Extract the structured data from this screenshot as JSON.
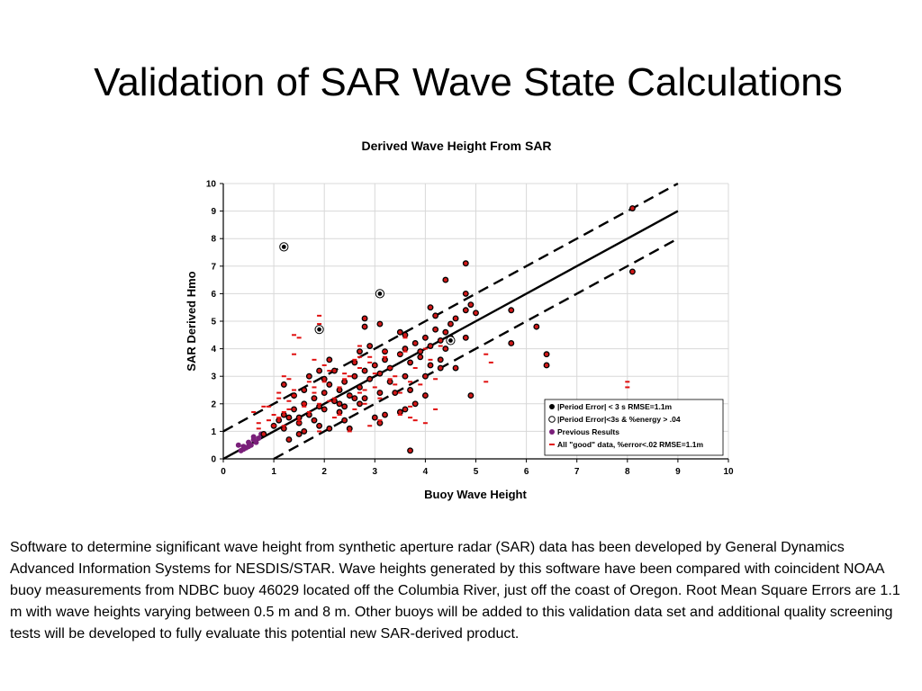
{
  "slide": {
    "title": "Validation of SAR Wave State Calculations",
    "body": "Software to determine significant wave height from synthetic aperture radar (SAR) data has been developed by General Dynamics Advanced Information Systems for NESDIS/STAR.  Wave heights generated by this software have been compared with coincident NOAA buoy measurements from NDBC buoy 46029 located off the Columbia River, just off the coast of Oregon.  Root Mean Square Errors are 1.1 m with wave heights varying between 0.5 m and 8 m.  Other buoys will be added to this validation data set and additional quality screening tests will be developed to fully evaluate this potential new SAR-derived product."
  },
  "chart_data": {
    "type": "scatter",
    "title": "Derived Wave Height From SAR",
    "xlabel": "Buoy Wave Height",
    "ylabel": "SAR Derived Hmo",
    "xlim": [
      0,
      10
    ],
    "ylim": [
      0,
      10
    ],
    "xticks": [
      "0",
      "1",
      "2",
      "3",
      "4",
      "5",
      "6",
      "7",
      "8",
      "9",
      "10"
    ],
    "yticks": [
      "0",
      "1",
      "2",
      "3",
      "4",
      "5",
      "6",
      "7",
      "8",
      "9",
      "10"
    ],
    "grid": true,
    "legend_position": "bottom-right",
    "colors": {
      "filled": "#000000",
      "previous": "#7a1f7a",
      "good": "#e01010",
      "good_fill": "#d01818",
      "grid": "#d8d8d8"
    },
    "reference_lines": [
      {
        "style": "solid",
        "intercept": 0
      },
      {
        "style": "dashed",
        "intercept": 1
      },
      {
        "style": "dashed",
        "intercept": -1
      }
    ],
    "series": [
      {
        "name": "|Period Error| < 3 s RMSE=1.1m",
        "marker": "filled-circle",
        "x": [
          0.8,
          1.0,
          1.1,
          1.2,
          1.2,
          1.3,
          1.4,
          1.5,
          1.6,
          1.7,
          1.8,
          1.9,
          2.0,
          2.1,
          2.2,
          2.3,
          2.4,
          2.5,
          2.6,
          2.7,
          2.8,
          2.9,
          3.0,
          3.1,
          3.2,
          3.3,
          3.5,
          3.6,
          3.7,
          3.8,
          3.9,
          4.0,
          4.1,
          4.2,
          4.3,
          4.4,
          4.5,
          4.6,
          4.8,
          4.9,
          5.0,
          1.4,
          1.6,
          1.8,
          2.0,
          2.2,
          2.4,
          2.6,
          2.8,
          3.0,
          3.2,
          3.4,
          3.6,
          3.8,
          4.0,
          4.2,
          4.4,
          4.6,
          4.8,
          1.5,
          1.7,
          1.9,
          2.1,
          2.3,
          2.5,
          2.7,
          2.9,
          3.1,
          3.3,
          3.5,
          3.7,
          3.9,
          4.1,
          4.3,
          4.5,
          1.3,
          1.6,
          2.0,
          2.4,
          2.8,
          3.2,
          3.6,
          4.0,
          4.4,
          4.8,
          2.1,
          2.6,
          3.1,
          3.6,
          4.1,
          5.7,
          6.2,
          6.4,
          6.4,
          8.1,
          8.1,
          3.7,
          4.9,
          5.7,
          4.3,
          4.8,
          2.8,
          1.2,
          1.5,
          1.9,
          2.3,
          2.7,
          3.1,
          3.5
        ],
        "y": [
          0.9,
          1.2,
          1.4,
          1.6,
          1.1,
          1.5,
          1.8,
          1.3,
          2.0,
          1.6,
          2.2,
          1.9,
          2.4,
          2.7,
          2.1,
          2.5,
          2.8,
          2.3,
          3.0,
          2.6,
          3.2,
          2.9,
          3.4,
          3.1,
          3.6,
          3.3,
          3.8,
          4.0,
          3.5,
          4.2,
          3.9,
          4.4,
          4.1,
          4.7,
          4.3,
          4.6,
          4.9,
          5.1,
          5.4,
          5.6,
          5.3,
          2.3,
          2.5,
          1.4,
          1.8,
          3.2,
          1.9,
          3.5,
          2.2,
          1.5,
          3.9,
          2.4,
          4.5,
          2.0,
          3.0,
          5.2,
          4.0,
          3.3,
          6.0,
          0.9,
          3.0,
          1.2,
          3.6,
          1.7,
          1.1,
          2.0,
          4.1,
          1.3,
          2.8,
          4.6,
          2.5,
          3.7,
          5.5,
          3.3,
          4.4,
          0.7,
          1.0,
          2.9,
          1.4,
          5.1,
          1.6,
          3.0,
          2.3,
          6.5,
          7.1,
          1.1,
          2.2,
          4.9,
          1.8,
          3.4,
          5.4,
          4.8,
          3.8,
          3.4,
          9.1,
          6.8,
          0.3,
          2.3,
          4.2,
          3.6,
          4.4,
          4.8,
          2.7,
          1.5,
          3.2,
          2.0,
          3.9,
          2.4,
          1.7
        ]
      },
      {
        "name": "|Period Error|<3s & %energy > .04",
        "marker": "open-circle",
        "x": [
          1.2,
          1.9,
          3.1,
          4.5
        ],
        "y": [
          7.7,
          4.7,
          6.0,
          4.3
        ]
      },
      {
        "name": "Previous Results",
        "marker": "purple-circle",
        "x": [
          0.3,
          0.35,
          0.4,
          0.45,
          0.5,
          0.55,
          0.6,
          0.65,
          0.7,
          0.4,
          0.5,
          0.6,
          0.75
        ],
        "y": [
          0.5,
          0.3,
          0.45,
          0.4,
          0.6,
          0.5,
          0.8,
          0.6,
          0.75,
          0.35,
          0.45,
          0.7,
          0.9
        ]
      },
      {
        "name": "All \"good\" data, %error<.02 RMSE=1.1m",
        "marker": "red-dash",
        "x": [
          0.6,
          0.7,
          0.8,
          0.9,
          1.0,
          1.1,
          1.2,
          1.3,
          1.4,
          1.5,
          1.6,
          1.7,
          1.8,
          1.9,
          2.0,
          2.1,
          2.2,
          2.3,
          2.4,
          2.5,
          2.6,
          2.7,
          2.8,
          2.9,
          3.0,
          3.1,
          3.2,
          3.3,
          3.4,
          3.5,
          3.6,
          3.7,
          3.8,
          3.9,
          4.0,
          4.1,
          4.2,
          4.3,
          0.7,
          0.9,
          1.1,
          1.3,
          1.5,
          1.7,
          1.9,
          2.1,
          2.3,
          2.5,
          2.7,
          2.9,
          3.1,
          3.3,
          3.5,
          3.7,
          1.0,
          1.2,
          1.4,
          1.6,
          1.8,
          2.0,
          2.2,
          2.4,
          2.6,
          2.8,
          3.0,
          3.2,
          3.4,
          3.6,
          1.4,
          1.5,
          1.9,
          1.9,
          1.4,
          1.2,
          1.8,
          2.7,
          2.7,
          5.2,
          5.2,
          5.3,
          8.0,
          8.0,
          3.7,
          3.8,
          4.0,
          4.2,
          2.5,
          2.9,
          3.5,
          1.1,
          1.3
        ],
        "y": [
          1.7,
          1.1,
          1.9,
          1.4,
          1.6,
          2.2,
          1.2,
          1.8,
          2.5,
          1.3,
          2.0,
          1.7,
          2.4,
          1.0,
          2.8,
          2.1,
          1.5,
          2.6,
          3.1,
          2.3,
          1.8,
          3.3,
          2.0,
          3.5,
          2.6,
          1.4,
          3.7,
          2.9,
          3.0,
          2.4,
          3.9,
          1.9,
          3.3,
          2.7,
          4.0,
          3.6,
          2.9,
          4.1,
          1.3,
          1.9,
          1.5,
          2.1,
          1.4,
          2.8,
          2.0,
          3.2,
          1.6,
          3.0,
          2.4,
          3.7,
          2.2,
          3.3,
          3.8,
          2.8,
          1.2,
          1.7,
          2.3,
          1.9,
          2.6,
          3.4,
          2.2,
          2.9,
          3.6,
          2.5,
          3.1,
          3.9,
          2.7,
          4.4,
          4.5,
          4.4,
          5.2,
          4.9,
          3.8,
          3.0,
          3.6,
          4.1,
          3.7,
          2.8,
          3.8,
          3.5,
          2.8,
          2.6,
          1.5,
          1.4,
          1.3,
          1.8,
          1.0,
          1.2,
          1.6,
          2.4,
          2.9
        ]
      }
    ]
  }
}
